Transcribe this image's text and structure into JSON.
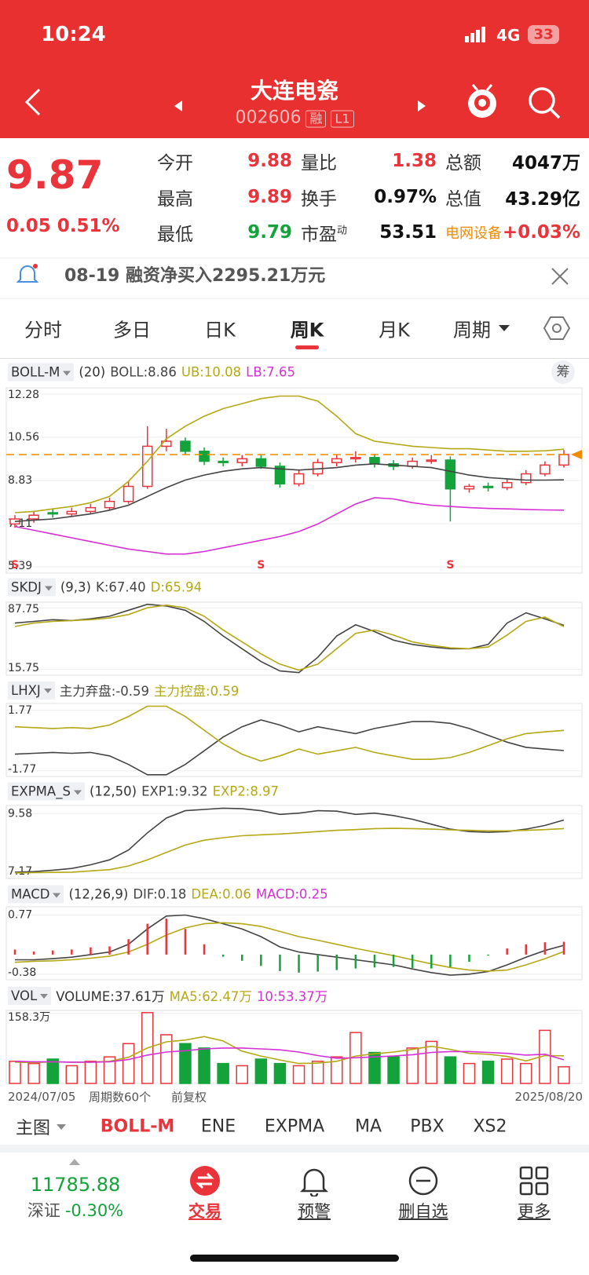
{
  "status_bar": {
    "time": "10:24",
    "network": "4G",
    "battery": "33"
  },
  "header": {
    "title": "大连电瓷",
    "code": "002606",
    "badges": [
      "融",
      "L1"
    ]
  },
  "colors": {
    "up": "#e8343a",
    "down": "#13a33a",
    "price_line": "#f08a00"
  },
  "quote": {
    "price": 9.87,
    "change": "0.05",
    "change_pct": "0.51%",
    "fields": [
      {
        "label": "今开",
        "value": "9.88",
        "color": "#e8343a"
      },
      {
        "label": "量比",
        "value": "1.38",
        "color": "#e8343a"
      },
      {
        "label": "总额",
        "value": "4047万",
        "color": "#111111"
      },
      {
        "label": "最高",
        "value": "9.89",
        "color": "#e8343a"
      },
      {
        "label": "换手",
        "value": "0.97%",
        "color": "#111111"
      },
      {
        "label": "总值",
        "value": "43.29亿",
        "color": "#111111"
      },
      {
        "label": "最低",
        "value": "9.79",
        "color": "#13a33a"
      },
      {
        "label": "市盈",
        "sup": "动",
        "value": "53.51",
        "color": "#111111"
      },
      {
        "label": "电网设备",
        "value": "+0.03%",
        "color": "#e8343a",
        "label_color": "#f08a00"
      }
    ]
  },
  "notice": {
    "date": "08-19",
    "text": "融资净买入2295.21万元"
  },
  "tabs": {
    "items": [
      "分时",
      "多日",
      "日K",
      "周K",
      "月K",
      "周期"
    ],
    "active": 3
  },
  "button": "筹",
  "panels": [
    {
      "type": "candlestick",
      "name": "BOLL-M",
      "params": "(20)",
      "ylim": [
        5.14,
        12.53
      ],
      "yticks": [
        12.28,
        10.56,
        8.83,
        7.11,
        5.39
      ],
      "open": [
        7.1,
        7.3,
        7.55,
        7.5,
        7.6,
        7.75,
        8.0,
        8.6,
        10.2,
        10.4,
        10.0,
        9.6,
        9.55,
        9.7,
        9.4,
        8.7,
        9.1,
        9.55,
        9.7,
        9.75,
        9.5,
        9.4,
        9.6,
        9.65,
        8.5,
        8.6,
        8.55,
        8.75,
        9.1,
        9.45
      ],
      "close": [
        7.3,
        7.45,
        7.5,
        7.6,
        7.75,
        8.0,
        8.6,
        10.2,
        10.4,
        10.0,
        9.6,
        9.55,
        9.7,
        9.4,
        8.7,
        9.1,
        9.55,
        9.7,
        9.75,
        9.5,
        9.4,
        9.6,
        9.65,
        8.5,
        8.6,
        8.55,
        8.75,
        9.1,
        9.45,
        9.87
      ],
      "high": [
        7.45,
        7.6,
        7.7,
        7.75,
        7.9,
        8.15,
        8.8,
        11.0,
        10.9,
        10.55,
        10.15,
        9.75,
        9.85,
        9.85,
        9.55,
        9.25,
        9.7,
        9.85,
        10.0,
        9.9,
        9.65,
        9.75,
        9.85,
        9.8,
        8.7,
        8.75,
        8.9,
        9.25,
        9.6,
        10.05
      ],
      "low": [
        6.95,
        7.15,
        7.35,
        7.4,
        7.5,
        7.65,
        7.9,
        8.5,
        10.0,
        9.85,
        9.45,
        9.4,
        9.4,
        9.3,
        8.55,
        8.6,
        9.0,
        9.4,
        9.55,
        9.35,
        9.25,
        9.3,
        9.5,
        7.2,
        8.35,
        8.4,
        8.45,
        8.65,
        9.0,
        9.35
      ],
      "signals": {
        "label": "S",
        "indices": [
          0,
          13,
          23
        ]
      },
      "legend": [
        {
          "label": "BOLL:",
          "value": "8.86",
          "color": "#444444",
          "values": [
            7.2,
            7.25,
            7.3,
            7.4,
            7.5,
            7.65,
            7.85,
            8.2,
            8.55,
            8.85,
            9.05,
            9.2,
            9.3,
            9.35,
            9.3,
            9.25,
            9.3,
            9.35,
            9.45,
            9.5,
            9.45,
            9.4,
            9.35,
            9.2,
            9.05,
            8.95,
            8.9,
            8.85,
            8.85,
            8.86
          ]
        },
        {
          "label": "UB:",
          "value": "10.08",
          "color": "#b5a815",
          "values": [
            7.55,
            7.6,
            7.7,
            7.8,
            7.95,
            8.2,
            8.8,
            9.6,
            10.5,
            11.0,
            11.4,
            11.7,
            11.9,
            12.1,
            12.2,
            12.2,
            12.0,
            11.4,
            10.7,
            10.4,
            10.3,
            10.2,
            10.15,
            10.1,
            10.1,
            10.05,
            10.0,
            10.0,
            10.02,
            10.08
          ]
        },
        {
          "label": "LB:",
          "value": "7.65",
          "color": "#d62fd6",
          "values": [
            7.0,
            6.85,
            6.7,
            6.55,
            6.4,
            6.25,
            6.1,
            6.0,
            5.9,
            5.9,
            6.0,
            6.15,
            6.3,
            6.45,
            6.6,
            6.8,
            7.1,
            7.5,
            7.9,
            8.15,
            8.1,
            7.95,
            7.85,
            7.8,
            7.75,
            7.72,
            7.7,
            7.68,
            7.66,
            7.65
          ]
        }
      ]
    },
    {
      "type": "line",
      "name": "SKDJ",
      "params": "(9,3)",
      "ylim": [
        9,
        94.5
      ],
      "yticks": [
        87.75,
        15.75
      ],
      "legend": [
        {
          "label": "K:",
          "value": "67.40",
          "color": "#444444",
          "values": [
            70,
            72,
            74,
            73,
            75,
            78,
            85,
            92,
            90,
            85,
            72,
            55,
            40,
            25,
            14,
            12,
            30,
            55,
            68,
            60,
            50,
            45,
            42,
            40,
            40,
            45,
            70,
            82,
            75,
            67.4
          ]
        },
        {
          "label": "D:",
          "value": "65.94",
          "color": "#b5a815",
          "values": [
            66,
            70,
            72,
            73,
            74,
            76,
            80,
            88,
            91,
            88,
            78,
            62,
            48,
            34,
            22,
            15,
            22,
            40,
            58,
            62,
            56,
            48,
            44,
            41,
            40,
            42,
            56,
            72,
            77,
            65.94
          ]
        }
      ]
    },
    {
      "type": "line",
      "name": "LHXJ",
      "ylim": [
        -2.1,
        2.16
      ],
      "yticks": [
        1.77,
        -1.77
      ],
      "legend": [
        {
          "label": "主力弃盘:",
          "value": "-0.59",
          "color": "#444444",
          "values": [
            -0.8,
            -0.75,
            -0.7,
            -0.75,
            -0.7,
            -0.9,
            -1.4,
            -2.0,
            -2.0,
            -1.4,
            -0.6,
            0.2,
            0.8,
            1.2,
            0.9,
            0.5,
            0.8,
            0.6,
            0.4,
            0.7,
            0.9,
            1.1,
            1.1,
            1.0,
            0.7,
            0.3,
            -0.1,
            -0.4,
            -0.5,
            -0.59
          ]
        },
        {
          "label": "主力控盘:",
          "value": "0.59",
          "color": "#b5a815",
          "values": [
            0.8,
            0.75,
            0.7,
            0.75,
            0.7,
            0.9,
            1.4,
            2.0,
            2.0,
            1.4,
            0.6,
            -0.2,
            -0.8,
            -1.2,
            -0.9,
            -0.5,
            -0.8,
            -0.6,
            -0.4,
            -0.7,
            -0.9,
            -1.1,
            -1.1,
            -1.0,
            -0.7,
            -0.3,
            0.1,
            0.4,
            0.5,
            0.59
          ]
        }
      ]
    },
    {
      "type": "line",
      "name": "EXPMA_S",
      "params": "(12,50)",
      "ylim": [
        6.94,
        9.91
      ],
      "yticks": [
        9.58,
        7.17
      ],
      "legend": [
        {
          "label": "EXP1:",
          "value": "9.32",
          "color": "#444444",
          "values": [
            7.2,
            7.22,
            7.28,
            7.35,
            7.5,
            7.7,
            8.1,
            8.8,
            9.4,
            9.7,
            9.75,
            9.8,
            9.78,
            9.7,
            9.55,
            9.6,
            9.7,
            9.68,
            9.55,
            9.6,
            9.5,
            9.35,
            9.15,
            8.95,
            8.85,
            8.82,
            8.85,
            8.95,
            9.1,
            9.32
          ]
        },
        {
          "label": "EXP2:",
          "value": "8.97",
          "color": "#b5a815",
          "values": [
            7.17,
            7.18,
            7.19,
            7.2,
            7.25,
            7.3,
            7.45,
            7.7,
            8.0,
            8.3,
            8.5,
            8.6,
            8.68,
            8.72,
            8.75,
            8.8,
            8.85,
            8.9,
            8.93,
            8.97,
            8.98,
            8.97,
            8.95,
            8.92,
            8.9,
            8.88,
            8.88,
            8.9,
            8.93,
            8.97
          ]
        }
      ]
    },
    {
      "type": "macd",
      "name": "MACD",
      "params": "(12,26,9)",
      "ylim": [
        -0.49,
        0.93
      ],
      "yticks": [
        0.77,
        -0.38
      ],
      "legend": [
        {
          "label": "DIF:",
          "value": "0.18",
          "color": "#444444",
          "values": [
            -0.1,
            -0.1,
            -0.08,
            -0.05,
            0,
            0.05,
            0.2,
            0.5,
            0.75,
            0.77,
            0.7,
            0.6,
            0.5,
            0.35,
            0.15,
            0.05,
            0.0,
            -0.05,
            -0.1,
            -0.15,
            -0.2,
            -0.28,
            -0.35,
            -0.4,
            -0.38,
            -0.33,
            -0.2,
            -0.05,
            0.08,
            0.18
          ]
        },
        {
          "label": "DEA:",
          "value": "0.06",
          "color": "#b5a815",
          "values": [
            -0.15,
            -0.13,
            -0.12,
            -0.1,
            -0.07,
            -0.03,
            0.05,
            0.2,
            0.38,
            0.52,
            0.6,
            0.62,
            0.6,
            0.55,
            0.45,
            0.35,
            0.28,
            0.2,
            0.12,
            0.05,
            -0.02,
            -0.1,
            -0.18,
            -0.25,
            -0.3,
            -0.32,
            -0.3,
            -0.2,
            -0.08,
            0.06
          ]
        },
        {
          "label": "MACD:",
          "value": "0.25",
          "color": "#d62fd6",
          "kind": "bar",
          "values": [
            0.1,
            0.06,
            0.08,
            0.1,
            0.14,
            0.16,
            0.3,
            0.6,
            0.7,
            0.5,
            0.2,
            -0.04,
            -0.12,
            -0.22,
            -0.32,
            -0.35,
            -0.33,
            -0.3,
            -0.27,
            -0.25,
            -0.24,
            -0.26,
            -0.27,
            -0.24,
            -0.14,
            -0.02,
            0.12,
            0.2,
            0.24,
            0.25
          ]
        }
      ]
    },
    {
      "type": "volume",
      "name": "VOL",
      "ylim": [
        0,
        165
      ],
      "yticks": [
        {
          "value": 158.3,
          "label": "158.3万"
        }
      ],
      "legend": [
        {
          "label": "VOLUME:",
          "value": "37.61万",
          "color": "#333333",
          "kind": "bar",
          "values": [
            50,
            45,
            55,
            40,
            50,
            60,
            90,
            160,
            110,
            90,
            80,
            45,
            40,
            55,
            45,
            40,
            50,
            60,
            115,
            70,
            60,
            80,
            95,
            60,
            45,
            50,
            55,
            45,
            120,
            37.61
          ]
        },
        {
          "label": "MA5:",
          "value": "62.47万",
          "color": "#b5a815",
          "values": [
            48,
            47,
            49,
            48,
            48,
            50,
            59,
            80,
            94,
            98,
            106,
            96,
            73,
            62,
            53,
            45,
            46,
            50,
            62,
            67,
            71,
            77,
            84,
            77,
            68,
            66,
            61,
            51,
            63,
            62.47
          ]
        },
        {
          "label": "10:",
          "value": "53.37万",
          "color": "#d62fd6",
          "values": [
            50,
            49,
            49,
            48,
            48,
            49,
            54,
            64,
            71,
            74,
            78,
            80,
            80,
            78,
            76,
            71,
            63,
            57,
            58,
            60,
            62,
            65,
            70,
            72,
            72,
            70,
            68,
            64,
            66,
            53.37
          ]
        }
      ]
    }
  ],
  "x_axis": {
    "start": "2024/07/05",
    "count": "周期数60个",
    "adjust": "前复权",
    "end": "2025/08/20"
  },
  "indicators": {
    "label": "主图",
    "items": [
      "BOLL-M",
      "ENE",
      "EXPMA",
      "MA",
      "PBX",
      "XS2"
    ],
    "active": 0
  },
  "index": {
    "value": "11785.88",
    "name": "深证",
    "change": "-0.30%"
  },
  "nav": [
    "交易",
    "预警",
    "删自选",
    "更多"
  ]
}
